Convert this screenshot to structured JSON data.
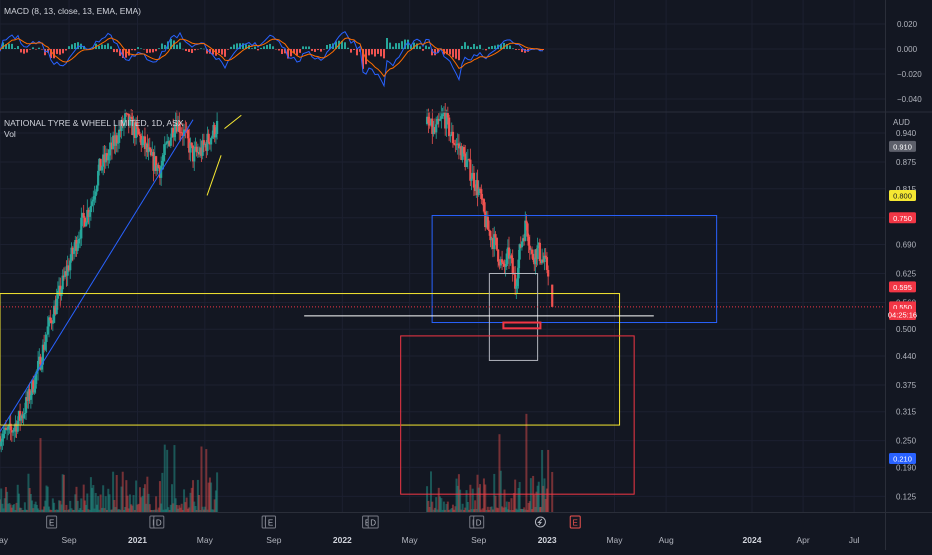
{
  "macd": {
    "label": "MACD (8, 13, close, 13, EMA, EMA)",
    "ticks": [
      "0.020",
      "0.000",
      "−0.020",
      "−0.040"
    ],
    "tick_values": [
      0.02,
      0.0,
      -0.02,
      -0.04
    ],
    "colors": {
      "macd_line": "#2962ff",
      "signal_line": "#ff6d00",
      "hist_up": "#26a69a",
      "hist_down": "#ef5350"
    }
  },
  "main": {
    "symbol_label": "NATIONAL TYRE & WHEEL LIMITED, 1D, ASX",
    "vol_label": "Vol",
    "currency": "AUD",
    "price_ticks": [
      "0.940",
      "0.875",
      "0.815",
      "0.750",
      "0.690",
      "0.625",
      "0.560",
      "0.500",
      "0.440",
      "0.375",
      "0.315",
      "0.250",
      "0.190",
      "0.125"
    ],
    "price_tick_values": [
      0.94,
      0.875,
      0.815,
      0.75,
      0.69,
      0.625,
      0.56,
      0.5,
      0.44,
      0.375,
      0.315,
      0.25,
      0.19,
      0.125
    ],
    "badges": [
      {
        "text": "0.910",
        "value": 0.91,
        "bg": "#5d606b",
        "fg": "#ffffff"
      },
      {
        "text": "0.800",
        "value": 0.8,
        "bg": "#f5e732",
        "fg": "#131722"
      },
      {
        "text": "0.750",
        "value": 0.75,
        "bg": "#f23645",
        "fg": "#ffffff"
      },
      {
        "text": "0.595",
        "value": 0.595,
        "bg": "#f23645",
        "fg": "#ffffff"
      },
      {
        "text": "0.550",
        "value": 0.55,
        "bg": "#f23645",
        "fg": "#ffffff"
      },
      {
        "text": "04:25:16",
        "value": 0.533,
        "bg": "#f23645",
        "fg": "#ffffff"
      },
      {
        "text": "0.210",
        "value": 0.21,
        "bg": "#2962ff",
        "fg": "#ffffff"
      }
    ],
    "last_price": 0.55
  },
  "time_axis": {
    "labels": [
      "May",
      "Sep",
      "2021",
      "May",
      "Sep",
      "2022",
      "May",
      "Sep",
      "2023",
      "May",
      "Aug",
      "2024",
      "Apr",
      "Jul"
    ],
    "dates": [
      "2020-05-01",
      "2020-09-01",
      "2021-01-01",
      "2021-05-01",
      "2021-09-01",
      "2022-01-01",
      "2022-05-01",
      "2022-09-01",
      "2023-01-01",
      "2023-05-01",
      "2023-08-01",
      "2024-01-01",
      "2024-04-01",
      "2024-07-01"
    ],
    "bold": [
      "2021",
      "2022",
      "2023",
      "2024"
    ]
  },
  "event_markers": [
    {
      "type": "E",
      "date": "2020-08-01"
    },
    {
      "type": "E",
      "date": "2021-02-01"
    },
    {
      "type": "D",
      "date": "2021-02-08"
    },
    {
      "type": "D",
      "date": "2021-08-20"
    },
    {
      "type": "E",
      "date": "2021-08-26"
    },
    {
      "type": "E",
      "date": "2022-02-15"
    },
    {
      "type": "D",
      "date": "2022-02-25"
    },
    {
      "type": "E",
      "date": "2022-08-25"
    },
    {
      "type": "D",
      "date": "2022-09-01"
    },
    {
      "type": "dividend-icon",
      "date": "2022-12-20"
    },
    {
      "type": "E",
      "date": "2023-02-20"
    }
  ],
  "drawings": {
    "colors": {
      "trendline": "#2962ff",
      "channel": "#f5e732",
      "blue_box": "#2962ff",
      "yellow_box": "#f5e732",
      "gray_box": "#b2b5be",
      "red_box": "#f23645",
      "hline": "#ffffff"
    }
  },
  "chart_data": {
    "type": "candlestick",
    "symbol": "NATIONAL TYRE & WHEEL LIMITED",
    "interval": "1D",
    "exchange": "ASX",
    "currency": "AUD",
    "price_range": [
      0.09,
      0.985
    ],
    "date_range": [
      "2020-05-01",
      "2024-08-25"
    ],
    "close_path": [
      [
        "2020-05-01",
        0.26
      ],
      [
        "2020-05-20",
        0.27
      ],
      [
        "2020-06-10",
        0.31
      ],
      [
        "2020-06-25",
        0.36
      ],
      [
        "2020-07-10",
        0.42
      ],
      [
        "2020-07-25",
        0.5
      ],
      [
        "2020-08-10",
        0.56
      ],
      [
        "2020-08-25",
        0.62
      ],
      [
        "2020-09-10",
        0.68
      ],
      [
        "2020-09-25",
        0.74
      ],
      [
        "2020-10-10",
        0.78
      ],
      [
        "2020-10-25",
        0.86
      ],
      [
        "2020-11-10",
        0.89
      ],
      [
        "2020-11-25",
        0.93
      ],
      [
        "2020-12-10",
        0.97
      ],
      [
        "2020-12-25",
        0.95
      ],
      [
        "2021-01-10",
        0.92
      ],
      [
        "2021-01-25",
        0.88
      ],
      [
        "2021-02-10",
        0.86
      ],
      [
        "2021-02-25",
        0.92
      ],
      [
        "2021-03-10",
        0.97
      ],
      [
        "2021-03-25",
        0.94
      ],
      [
        "2021-04-10",
        0.89
      ],
      [
        "2021-04-25",
        0.9
      ],
      [
        "2021-05-10",
        0.93
      ],
      [
        "2021-05-25",
        0.96
      ],
      [
        "2022-06-01",
        0.96
      ],
      [
        "2022-06-15",
        0.94
      ],
      [
        "2022-07-01",
        0.98
      ],
      [
        "2022-07-15",
        0.93
      ],
      [
        "2022-08-01",
        0.9
      ],
      [
        "2022-08-15",
        0.86
      ],
      [
        "2022-09-01",
        0.81
      ],
      [
        "2022-09-15",
        0.73
      ],
      [
        "2022-10-01",
        0.69
      ],
      [
        "2022-10-15",
        0.63
      ],
      [
        "2022-10-25",
        0.67
      ],
      [
        "2022-11-05",
        0.6
      ],
      [
        "2022-11-15",
        0.69
      ],
      [
        "2022-11-25",
        0.74
      ],
      [
        "2022-12-05",
        0.66
      ],
      [
        "2022-12-15",
        0.68
      ],
      [
        "2022-12-25",
        0.65
      ],
      [
        "2023-01-05",
        0.63
      ]
    ],
    "last_candle": {
      "date": "2023-01-10",
      "open": 0.6,
      "high": 0.6,
      "low": 0.55,
      "close": 0.55
    },
    "price_labels": [
      0.91,
      0.8,
      0.75,
      0.595,
      0.55,
      0.21
    ],
    "horizontal_line": {
      "price": 0.53,
      "from": "2021-10-25",
      "to": "2023-07-10"
    },
    "trendline": {
      "from": [
        "2020-05-01",
        0.27
      ],
      "to": [
        "2021-04-10",
        0.97
      ]
    },
    "channel_lines": [
      {
        "from": [
          "2021-05-05",
          0.8
        ],
        "to": [
          "2021-05-30",
          0.89
        ]
      },
      {
        "from": [
          "2021-06-05",
          0.95
        ],
        "to": [
          "2021-07-05",
          0.98
        ]
      }
    ],
    "rectangles": [
      {
        "name": "blue-zone",
        "from": "2022-06-10",
        "to": "2023-10-30",
        "price_high": 0.755,
        "price_low": 0.515
      },
      {
        "name": "yellow-zone",
        "from": "2020-05-01",
        "to": "2023-05-10",
        "price_high": 0.58,
        "price_low": 0.285
      },
      {
        "name": "gray-zone",
        "from": "2022-09-20",
        "to": "2022-12-15",
        "price_high": 0.625,
        "price_low": 0.43
      },
      {
        "name": "red-zone",
        "from": "2022-04-15",
        "to": "2023-06-05",
        "price_high": 0.485,
        "price_low": 0.13
      },
      {
        "name": "red-small-zone",
        "from": "2022-10-15",
        "to": "2022-12-20",
        "price_high": 0.515,
        "price_low": 0.502
      }
    ]
  }
}
